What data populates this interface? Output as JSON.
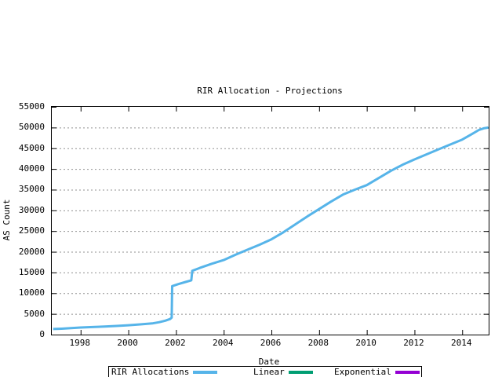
{
  "chart_data": {
    "type": "line",
    "title": "RIR Allocation - Projections",
    "xlabel": "Date",
    "ylabel": "AS Count",
    "xlim": [
      1996.79,
      2015.11
    ],
    "ylim": [
      0,
      55000
    ],
    "x_ticks": [
      1998,
      2000,
      2002,
      2004,
      2006,
      2008,
      2010,
      2012,
      2014
    ],
    "y_ticks": [
      0,
      5000,
      10000,
      15000,
      20000,
      25000,
      30000,
      35000,
      40000,
      45000,
      50000,
      55000
    ],
    "grid": "horizontal-dotted",
    "grid_color": "#909090",
    "axis_color": "#000000",
    "legend_position": "bottom-center-outside",
    "series": [
      {
        "name": "RIR Allocations",
        "color": "#56b4e9",
        "points": [
          [
            1996.85,
            1350
          ],
          [
            1997.2,
            1430
          ],
          [
            1997.6,
            1550
          ],
          [
            1998.0,
            1700
          ],
          [
            1998.5,
            1830
          ],
          [
            1999.0,
            1960
          ],
          [
            1999.5,
            2080
          ],
          [
            2000.0,
            2260
          ],
          [
            2000.5,
            2460
          ],
          [
            2001.0,
            2700
          ],
          [
            2001.3,
            3000
          ],
          [
            2001.55,
            3350
          ],
          [
            2001.75,
            3750
          ],
          [
            2001.82,
            4100
          ],
          [
            2001.84,
            11700
          ],
          [
            2002.1,
            12200
          ],
          [
            2002.4,
            12700
          ],
          [
            2002.64,
            13100
          ],
          [
            2002.68,
            15400
          ],
          [
            2003.0,
            16100
          ],
          [
            2003.5,
            17100
          ],
          [
            2004.0,
            18000
          ],
          [
            2004.5,
            19300
          ],
          [
            2005.0,
            20500
          ],
          [
            2005.5,
            21700
          ],
          [
            2006.0,
            23000
          ],
          [
            2006.5,
            24700
          ],
          [
            2007.0,
            26600
          ],
          [
            2007.5,
            28500
          ],
          [
            2008.0,
            30300
          ],
          [
            2008.5,
            32100
          ],
          [
            2009.0,
            33800
          ],
          [
            2009.5,
            35000
          ],
          [
            2010.0,
            36100
          ],
          [
            2010.5,
            37800
          ],
          [
            2011.0,
            39500
          ],
          [
            2011.5,
            41000
          ],
          [
            2012.0,
            42300
          ],
          [
            2012.5,
            43500
          ],
          [
            2013.0,
            44700
          ],
          [
            2013.5,
            45900
          ],
          [
            2014.0,
            47100
          ],
          [
            2014.4,
            48400
          ],
          [
            2014.7,
            49400
          ],
          [
            2014.9,
            49800
          ],
          [
            2015.1,
            50000
          ]
        ]
      },
      {
        "name": "Linear",
        "color": "#009e73",
        "points": []
      },
      {
        "name": "Exponential",
        "color": "#9400d3",
        "points": []
      }
    ]
  }
}
